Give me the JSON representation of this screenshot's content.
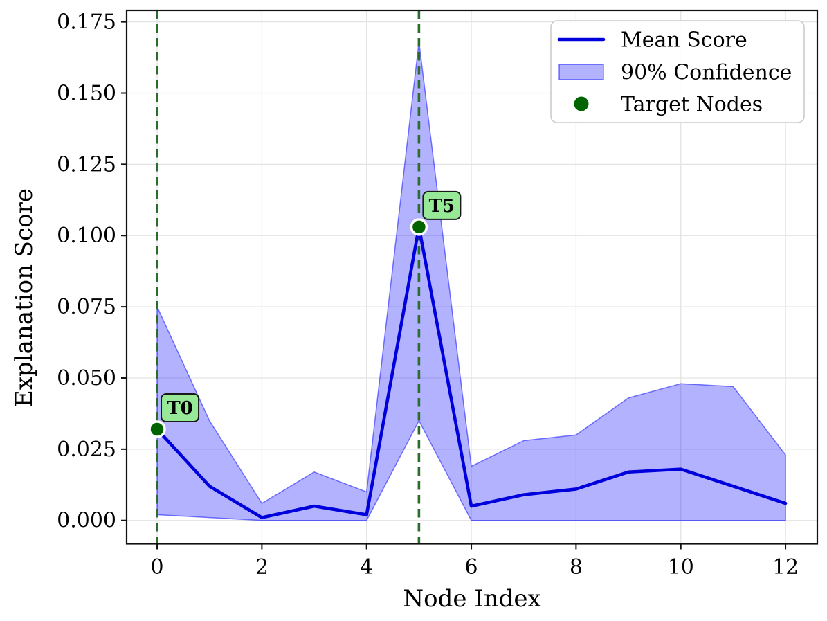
{
  "chart_data": {
    "type": "line",
    "title": "",
    "xlabel": "Node Index",
    "ylabel": "Explanation Score",
    "x": [
      0,
      1,
      2,
      3,
      4,
      5,
      6,
      7,
      8,
      9,
      10,
      11,
      12
    ],
    "series": [
      {
        "name": "Mean Score",
        "style": "line",
        "values": [
          0.032,
          0.012,
          0.001,
          0.005,
          0.002,
          0.103,
          0.005,
          0.009,
          0.011,
          0.017,
          0.018,
          0.012,
          0.006
        ]
      },
      {
        "name": "90% Confidence",
        "style": "band",
        "upper": [
          0.075,
          0.035,
          0.006,
          0.017,
          0.01,
          0.168,
          0.019,
          0.028,
          0.03,
          0.043,
          0.048,
          0.047,
          0.023
        ],
        "lower": [
          0.002,
          0.001,
          0.0,
          0.0,
          0.0,
          0.035,
          0.0,
          0.0,
          0.0,
          0.0,
          0.0,
          0.0,
          0.0
        ]
      },
      {
        "name": "Target Nodes",
        "style": "scatter",
        "points": [
          {
            "x": 0,
            "y": 0.032,
            "label": "T0"
          },
          {
            "x": 5,
            "y": 0.103,
            "label": "T5"
          }
        ]
      }
    ],
    "target_vlines_x": [
      0,
      5
    ],
    "xticks": [
      0,
      2,
      4,
      6,
      8,
      10,
      12
    ],
    "ytick_values": [
      0.0,
      0.025,
      0.05,
      0.075,
      0.1,
      0.125,
      0.15,
      0.175
    ],
    "ytick_labels": [
      "0.000",
      "0.025",
      "0.050",
      "0.075",
      "0.100",
      "0.125",
      "0.150",
      "0.175"
    ],
    "xlim": [
      -0.582,
      12.607
    ],
    "ylim": [
      -0.00821,
      0.17904
    ],
    "grid": true,
    "legend": {
      "position": "top-right",
      "items": [
        {
          "label": "Mean Score",
          "swatch": "line"
        },
        {
          "label": "90% Confidence",
          "swatch": "patch"
        },
        {
          "label": "Target Nodes",
          "swatch": "dot"
        }
      ]
    },
    "colors": {
      "mean_line": "#0000dd",
      "band_fill": "#0000ff",
      "band_fill_opacity": 0.3,
      "band_edge": "#0000ff",
      "band_edge_opacity": 0.5,
      "vline_green": "#2a6e2a",
      "target_dot": "#006400",
      "dot_ring": "#ffffff",
      "annotation_bg": "#97e897",
      "annotation_border": "#1a1a1a",
      "annotation_text": "#1a5c1a",
      "grid": "#e3e3e3",
      "spine": "#111111",
      "legend_border": "#cccccc",
      "legend_bg": "#ffffff",
      "text": "#000000"
    }
  }
}
